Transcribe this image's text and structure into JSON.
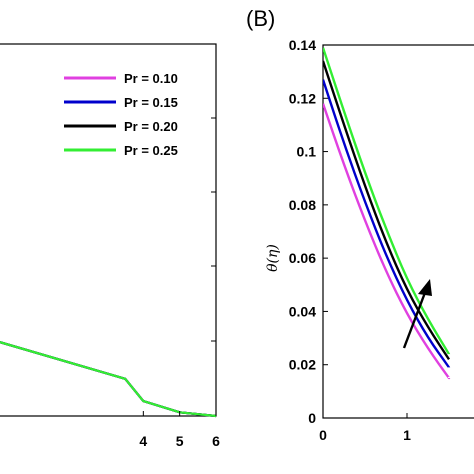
{
  "chart_data": [
    {
      "type": "line",
      "panel": "A",
      "title": "",
      "xlabel": "",
      "ylabel": "",
      "xlim": [
        0,
        6
      ],
      "xticks": [
        "4",
        "5",
        "6"
      ],
      "grid": false,
      "legend_position": "top-right",
      "series": [
        {
          "name": "Pr = 0.10",
          "color": "#e040e0",
          "x": [
            0,
            3.5,
            4,
            5,
            6
          ],
          "y": [
            0.02,
            0.01,
            0.004,
            0.001,
            0.0
          ]
        },
        {
          "name": "Pr = 0.15",
          "color": "#0000cc",
          "x": [
            0,
            3.5,
            4,
            5,
            6
          ],
          "y": [
            0.02,
            0.01,
            0.004,
            0.001,
            0.0
          ]
        },
        {
          "name": "Pr = 0.20",
          "color": "#000000",
          "x": [
            0,
            3.5,
            4,
            5,
            6
          ],
          "y": [
            0.02,
            0.01,
            0.004,
            0.001,
            0.0
          ]
        },
        {
          "name": "Pr = 0.25",
          "color": "#33ee33",
          "x": [
            0,
            3.5,
            4,
            5,
            6
          ],
          "y": [
            0.02,
            0.01,
            0.004,
            0.001,
            0.0
          ]
        }
      ]
    },
    {
      "type": "line",
      "panel": "B",
      "panel_label": "(B)",
      "title": "",
      "xlabel": "",
      "ylabel": "θ(η)",
      "xlim": [
        0,
        2
      ],
      "ylim": [
        0,
        0.14
      ],
      "xticks": [
        "0",
        "1"
      ],
      "yticks": [
        "0",
        "0.02",
        "0.04",
        "0.06",
        "0.08",
        "0.1",
        "0.12",
        "0.14"
      ],
      "grid": false,
      "annotation": "arrow pointing up-right, indicating increasing Pr",
      "series": [
        {
          "name": "Pr = 0.10",
          "color": "#e040e0",
          "x": [
            0,
            0.25,
            0.5,
            0.75,
            1.0,
            1.25,
            1.5
          ],
          "y": [
            0.118,
            0.095,
            0.074,
            0.055,
            0.039,
            0.026,
            0.015
          ]
        },
        {
          "name": "Pr = 0.15",
          "color": "#0000cc",
          "x": [
            0,
            0.25,
            0.5,
            0.75,
            1.0,
            1.25,
            1.5
          ],
          "y": [
            0.127,
            0.103,
            0.081,
            0.061,
            0.044,
            0.03,
            0.019
          ]
        },
        {
          "name": "Pr = 0.20",
          "color": "#000000",
          "x": [
            0,
            0.25,
            0.5,
            0.75,
            1.0,
            1.25,
            1.5
          ],
          "y": [
            0.134,
            0.11,
            0.087,
            0.066,
            0.048,
            0.034,
            0.022
          ]
        },
        {
          "name": "Pr = 0.25",
          "color": "#33ee33",
          "x": [
            0,
            0.25,
            0.5,
            0.75,
            1.0,
            1.25,
            1.5
          ],
          "y": [
            0.139,
            0.115,
            0.092,
            0.071,
            0.052,
            0.037,
            0.024
          ]
        }
      ]
    }
  ]
}
